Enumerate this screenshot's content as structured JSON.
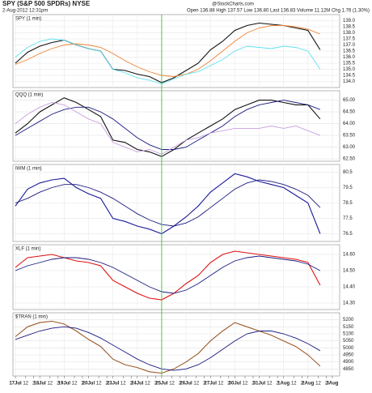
{
  "header": {
    "title": "SPY (S&P 500 SPDRs) NYSE",
    "date": "2-Aug-2012 12:31pm",
    "brand": "@StockCharts.com",
    "quote": "Open 136.88 High 137.57 Low 136.80 Last 136.83 Volume 11.12M Chg 1.76 (1.30%)"
  },
  "vline": {
    "x": 6,
    "color": "#33cc33"
  },
  "chart_data": [
    {
      "type": "line",
      "title": "SPY (1 min)",
      "x": [
        0,
        0.5,
        1,
        1.5,
        2,
        2.5,
        3,
        3.5,
        4,
        4.5,
        5,
        5.5,
        6,
        6.5,
        7,
        7.5,
        8,
        8.5,
        9,
        9.5,
        10,
        10.5,
        11,
        11.5,
        12,
        12.5
      ],
      "ylim": [
        133.5,
        139.5
      ],
      "yticks": [
        {
          "value": 134,
          "label": "134.0"
        },
        134.5,
        {
          "value": 135,
          "label": "135.0"
        },
        135.5,
        {
          "value": 136,
          "label": "136.0"
        },
        136.5,
        {
          "value": 137,
          "label": "137.0"
        },
        137.5,
        {
          "value": 138,
          "label": "138.0"
        },
        138.5,
        {
          "value": 139,
          "label": "139.0"
        }
      ],
      "grid": true,
      "series": [
        {
          "name": "SPY (1 min)",
          "color": "#111111",
          "values": [
            135.5,
            136.4,
            136.9,
            137.2,
            137.4,
            137.0,
            136.7,
            136.5,
            135.0,
            134.9,
            134.6,
            134.4,
            133.9,
            134.3,
            134.9,
            135.5,
            136.6,
            137.3,
            138.2,
            138.6,
            138.8,
            138.7,
            138.6,
            138.4,
            138.2,
            136.6
          ]
        },
        {
          "color": "#f08030",
          "values": [
            135.4,
            135.8,
            136.3,
            136.7,
            137.0,
            137.1,
            137.0,
            136.8,
            136.3,
            135.7,
            135.2,
            134.8,
            134.5,
            134.4,
            134.6,
            135.0,
            135.7,
            136.5,
            137.3,
            138.0,
            138.4,
            138.6,
            138.6,
            138.5,
            138.3,
            137.9
          ]
        },
        {
          "color": "#5fe0f0",
          "values": [
            136.0,
            136.8,
            137.3,
            137.5,
            137.4,
            137.0,
            136.7,
            136.5,
            135.0,
            134.7,
            134.3,
            134.1,
            133.8,
            134.2,
            134.6,
            134.8,
            135.3,
            135.8,
            136.5,
            136.9,
            136.8,
            136.7,
            136.9,
            136.8,
            136.5,
            135.0
          ]
        }
      ]
    },
    {
      "type": "line",
      "title": "QQQ (1 min)",
      "x": [
        0,
        0.5,
        1,
        1.5,
        2,
        2.5,
        3,
        3.5,
        4,
        4.5,
        5,
        5.5,
        6,
        6.5,
        7,
        7.5,
        8,
        8.5,
        9,
        9.5,
        10,
        10.5,
        11,
        11.5,
        12,
        12.5
      ],
      "ylim": [
        62.4,
        65.4
      ],
      "yticks": [
        {
          "value": 62.5,
          "label": "62.50"
        },
        {
          "value": 63,
          "label": "63.00"
        },
        {
          "value": 63.5,
          "label": "63.50"
        },
        {
          "value": 64,
          "label": "64.00"
        },
        {
          "value": 64.5,
          "label": "64.50"
        },
        {
          "value": 65,
          "label": "65.00"
        }
      ],
      "grid": true,
      "series": [
        {
          "name": "QQQ (1 min)",
          "color": "#111111",
          "values": [
            63.6,
            64.0,
            64.5,
            64.8,
            65.1,
            64.9,
            64.6,
            64.3,
            63.3,
            63.2,
            62.9,
            62.8,
            62.6,
            62.9,
            63.3,
            63.6,
            63.9,
            64.2,
            64.6,
            64.8,
            65.0,
            65.0,
            64.9,
            64.8,
            64.8,
            64.2
          ]
        },
        {
          "color": "#1a1a80",
          "values": [
            63.5,
            63.8,
            64.1,
            64.4,
            64.6,
            64.7,
            64.7,
            64.5,
            64.2,
            63.8,
            63.4,
            63.1,
            62.9,
            62.9,
            63.0,
            63.3,
            63.6,
            63.9,
            64.3,
            64.6,
            64.8,
            64.9,
            65.0,
            64.9,
            64.8,
            64.6
          ]
        },
        {
          "color": "#c8a0e0",
          "values": [
            64.0,
            64.4,
            64.7,
            64.9,
            64.8,
            64.5,
            64.2,
            64.0,
            63.2,
            63.0,
            62.8,
            62.9,
            62.7,
            63.0,
            63.3,
            63.4,
            63.6,
            63.7,
            63.8,
            63.8,
            63.8,
            63.9,
            63.8,
            63.9,
            63.7,
            63.5
          ]
        }
      ]
    },
    {
      "type": "line",
      "title": "IWM (1 min)",
      "x": [
        0,
        0.5,
        1,
        1.5,
        2,
        2.5,
        3,
        3.5,
        4,
        4.5,
        5,
        5.5,
        6,
        6.5,
        7,
        7.5,
        8,
        8.5,
        9,
        9.5,
        10,
        10.5,
        11,
        11.5,
        12,
        12.5
      ],
      "ylim": [
        76,
        81
      ],
      "yticks": [
        76.5,
        77.5,
        78.5,
        79.5,
        80.5
      ],
      "grid": true,
      "series": [
        {
          "name": "IWM (1 min)",
          "color": "#1a1a9a",
          "values": [
            78.3,
            79.4,
            79.8,
            80.0,
            80.1,
            79.5,
            79.1,
            78.8,
            77.5,
            77.3,
            77.0,
            76.8,
            76.5,
            77.0,
            77.6,
            78.3,
            79.2,
            79.8,
            80.4,
            80.2,
            79.9,
            79.7,
            79.5,
            79.0,
            78.5,
            76.5
          ]
        },
        {
          "color": "#1a1a80",
          "values": [
            78.5,
            78.8,
            79.2,
            79.5,
            79.7,
            79.7,
            79.5,
            79.2,
            78.8,
            78.3,
            77.8,
            77.4,
            77.1,
            77.0,
            77.2,
            77.6,
            78.2,
            78.8,
            79.4,
            79.8,
            80.0,
            79.9,
            79.7,
            79.4,
            79.0,
            78.2
          ]
        }
      ]
    },
    {
      "type": "line",
      "title": "XLF (1 min)",
      "x": [
        0,
        0.5,
        1,
        1.5,
        2,
        2.5,
        3,
        3.5,
        4,
        4.5,
        5,
        5.5,
        6,
        6.5,
        7,
        7.5,
        8,
        8.5,
        9,
        9.5,
        10,
        10.5,
        11,
        11.5,
        12,
        12.5
      ],
      "ylim": [
        14.26,
        14.66
      ],
      "yticks": [
        {
          "value": 14.3,
          "label": "14.30"
        },
        {
          "value": 14.4,
          "label": "14.40"
        },
        {
          "value": 14.5,
          "label": "14.50"
        },
        {
          "value": 14.6,
          "label": "14.60"
        }
      ],
      "grid": true,
      "series": [
        {
          "name": "XLF (1 min)",
          "color": "#e01010",
          "values": [
            14.52,
            14.58,
            14.59,
            14.6,
            14.58,
            14.56,
            14.55,
            14.53,
            14.44,
            14.4,
            14.36,
            14.33,
            14.32,
            14.36,
            14.42,
            14.47,
            14.55,
            14.6,
            14.62,
            14.61,
            14.6,
            14.59,
            14.58,
            14.57,
            14.55,
            14.41
          ]
        },
        {
          "color": "#1a1a80",
          "values": [
            14.5,
            14.53,
            14.55,
            14.57,
            14.58,
            14.58,
            14.57,
            14.55,
            14.52,
            14.48,
            14.44,
            14.4,
            14.37,
            14.36,
            14.38,
            14.42,
            14.47,
            14.52,
            14.56,
            14.58,
            14.59,
            14.58,
            14.57,
            14.56,
            14.54,
            14.5
          ]
        }
      ]
    },
    {
      "type": "line",
      "title": "$TRAN (1 min)",
      "x": [
        0,
        0.5,
        1,
        1.5,
        2,
        2.5,
        3,
        3.5,
        4,
        4.5,
        5,
        5.5,
        6,
        6.5,
        7,
        7.5,
        8,
        8.5,
        9,
        9.5,
        10,
        10.5,
        11,
        11.5,
        12,
        12.5
      ],
      "ylim": [
        4800,
        5250
      ],
      "yticks": [
        4850,
        4900,
        4950,
        5000,
        5050,
        5100,
        5150,
        5200
      ],
      "grid": true,
      "xlim": [
        -0.1,
        13.3
      ],
      "xticks": [
        {
          "value": 0,
          "label": "17Jul"
        },
        {
          "value": 0.42,
          "label": "12"
        },
        {
          "value": 0.75,
          "label": "2"
        },
        {
          "value": 1,
          "label": "18Jul"
        },
        {
          "value": 1.42,
          "label": "12"
        },
        {
          "value": 1.75,
          "label": "2"
        },
        {
          "value": 2,
          "label": "19Jul"
        },
        {
          "value": 2.42,
          "label": "12"
        },
        {
          "value": 2.75,
          "label": "2"
        },
        {
          "value": 3,
          "label": "20Jul"
        },
        {
          "value": 3.42,
          "label": "12"
        },
        {
          "value": 3.75,
          "label": "2"
        },
        {
          "value": 4,
          "label": "23Jul"
        },
        {
          "value": 4.42,
          "label": "12"
        },
        {
          "value": 4.75,
          "label": "2"
        },
        {
          "value": 5,
          "label": "24Jul"
        },
        {
          "value": 5.42,
          "label": "12"
        },
        {
          "value": 5.75,
          "label": "2"
        },
        {
          "value": 6,
          "label": "25Jul"
        },
        {
          "value": 6.42,
          "label": "12"
        },
        {
          "value": 6.75,
          "label": "2"
        },
        {
          "value": 7,
          "label": "26Jul"
        },
        {
          "value": 7.42,
          "label": "12"
        },
        {
          "value": 7.75,
          "label": "2"
        },
        {
          "value": 8,
          "label": "27Jul"
        },
        {
          "value": 8.42,
          "label": "12"
        },
        {
          "value": 8.75,
          "label": "2"
        },
        {
          "value": 9,
          "label": "30Jul"
        },
        {
          "value": 9.42,
          "label": "12"
        },
        {
          "value": 9.75,
          "label": "2"
        },
        {
          "value": 10,
          "label": "31Jul"
        },
        {
          "value": 10.42,
          "label": "12"
        },
        {
          "value": 10.75,
          "label": "2"
        },
        {
          "value": 11,
          "label": "1Aug"
        },
        {
          "value": 11.42,
          "label": "12"
        },
        {
          "value": 11.75,
          "label": "2"
        },
        {
          "value": 12,
          "label": "2Aug"
        },
        {
          "value": 12.42,
          "label": "12"
        },
        {
          "value": 12.75,
          "label": "2"
        },
        {
          "value": 13,
          "label": "3Aug"
        }
      ],
      "series": [
        {
          "name": "$TRAN (1 min)",
          "color": "#9a5a2a",
          "values": [
            5080,
            5150,
            5180,
            5190,
            5170,
            5120,
            5060,
            5010,
            4920,
            4880,
            4860,
            4830,
            4820,
            4850,
            4900,
            4960,
            5050,
            5120,
            5180,
            5150,
            5120,
            5090,
            5050,
            5010,
            4950,
            4870
          ]
        },
        {
          "color": "#1a1a80",
          "values": [
            5060,
            5090,
            5120,
            5140,
            5150,
            5140,
            5110,
            5070,
            5020,
            4970,
            4920,
            4880,
            4850,
            4840,
            4850,
            4880,
            4930,
            4990,
            5050,
            5100,
            5120,
            5120,
            5100,
            5070,
            5030,
            4980
          ]
        }
      ]
    }
  ]
}
